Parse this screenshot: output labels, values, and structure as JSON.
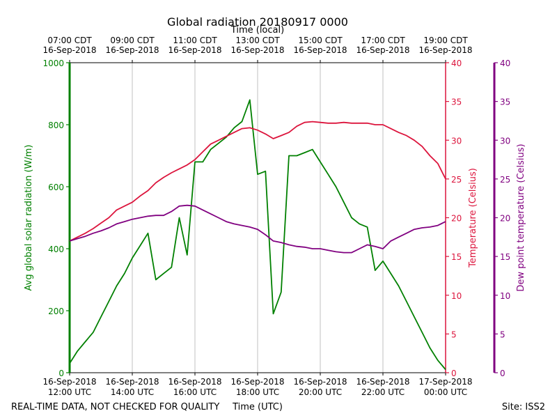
{
  "chart_data": {
    "type": "line",
    "title": "Global radiation 20180917 0000",
    "top_xlabel": "Time (local)",
    "xlabel": "Time (UTC)",
    "ylabel": "Avg global solar radiation (W/m)",
    "y2label": "Temperature (Celsius)",
    "y3label": "Dew point temperature (Celsius)",
    "footer_left": "REAL-TIME DATA, NOT CHECKED FOR QUALITY",
    "footer_right": "Site: ISS2",
    "grid": true,
    "x": [
      "2018-09-16T12:00Z",
      "2018-09-16T12:15Z",
      "2018-09-16T12:30Z",
      "2018-09-16T12:45Z",
      "2018-09-16T13:00Z",
      "2018-09-16T13:15Z",
      "2018-09-16T13:30Z",
      "2018-09-16T13:45Z",
      "2018-09-16T14:00Z",
      "2018-09-16T14:15Z",
      "2018-09-16T14:30Z",
      "2018-09-16T14:45Z",
      "2018-09-16T15:00Z",
      "2018-09-16T15:15Z",
      "2018-09-16T15:30Z",
      "2018-09-16T15:45Z",
      "2018-09-16T16:00Z",
      "2018-09-16T16:15Z",
      "2018-09-16T16:30Z",
      "2018-09-16T16:45Z",
      "2018-09-16T17:00Z",
      "2018-09-16T17:15Z",
      "2018-09-16T17:30Z",
      "2018-09-16T17:45Z",
      "2018-09-16T18:00Z",
      "2018-09-16T18:15Z",
      "2018-09-16T18:30Z",
      "2018-09-16T18:45Z",
      "2018-09-16T19:00Z",
      "2018-09-16T19:15Z",
      "2018-09-16T19:30Z",
      "2018-09-16T19:45Z",
      "2018-09-16T20:00Z",
      "2018-09-16T20:15Z",
      "2018-09-16T20:30Z",
      "2018-09-16T20:45Z",
      "2018-09-16T21:00Z",
      "2018-09-16T21:15Z",
      "2018-09-16T21:30Z",
      "2018-09-16T21:45Z",
      "2018-09-16T22:00Z",
      "2018-09-16T22:15Z",
      "2018-09-16T22:30Z",
      "2018-09-16T22:45Z",
      "2018-09-16T23:00Z",
      "2018-09-16T23:15Z",
      "2018-09-16T23:30Z",
      "2018-09-16T23:45Z",
      "2018-09-17T00:00Z"
    ],
    "xlim": [
      "2018-09-16T12:00Z",
      "2018-09-17T00:00Z"
    ],
    "xticks": [
      {
        "value": "2018-09-16T12:00Z",
        "label": [
          "16-Sep-2018",
          "12:00 UTC"
        ]
      },
      {
        "value": "2018-09-16T14:00Z",
        "label": [
          "16-Sep-2018",
          "14:00 UTC"
        ]
      },
      {
        "value": "2018-09-16T16:00Z",
        "label": [
          "16-Sep-2018",
          "16:00 UTC"
        ]
      },
      {
        "value": "2018-09-16T18:00Z",
        "label": [
          "16-Sep-2018",
          "18:00 UTC"
        ]
      },
      {
        "value": "2018-09-16T20:00Z",
        "label": [
          "16-Sep-2018",
          "20:00 UTC"
        ]
      },
      {
        "value": "2018-09-16T22:00Z",
        "label": [
          "16-Sep-2018",
          "22:00 UTC"
        ]
      },
      {
        "value": "2018-09-17T00:00Z",
        "label": [
          "17-Sep-2018",
          "00:00 UTC"
        ]
      }
    ],
    "top_xticks": [
      {
        "value": "2018-09-16T12:00Z",
        "label": [
          "07:00 CDT",
          "16-Sep-2018"
        ]
      },
      {
        "value": "2018-09-16T14:00Z",
        "label": [
          "09:00 CDT",
          "16-Sep-2018"
        ]
      },
      {
        "value": "2018-09-16T16:00Z",
        "label": [
          "11:00 CDT",
          "16-Sep-2018"
        ]
      },
      {
        "value": "2018-09-16T18:00Z",
        "label": [
          "13:00 CDT",
          "16-Sep-2018"
        ]
      },
      {
        "value": "2018-09-16T20:00Z",
        "label": [
          "15:00 CDT",
          "16-Sep-2018"
        ]
      },
      {
        "value": "2018-09-16T22:00Z",
        "label": [
          "17:00 CDT",
          "16-Sep-2018"
        ]
      },
      {
        "value": "2018-09-17T00:00Z",
        "label": [
          "19:00 CDT",
          "16-Sep-2018"
        ]
      }
    ],
    "ylim": [
      0,
      1000
    ],
    "yticks": [
      0,
      200,
      400,
      600,
      800,
      1000
    ],
    "ycolor": "#008000",
    "y2lim": [
      0,
      40
    ],
    "y2ticks": [
      0,
      5,
      10,
      15,
      20,
      25,
      30,
      35,
      40
    ],
    "y2color": "#dc143c",
    "y3lim": [
      0,
      40
    ],
    "y3ticks": [
      0,
      5,
      10,
      15,
      20,
      25,
      30,
      35,
      40
    ],
    "y3color": "#800080",
    "series": [
      {
        "name": "Avg global solar radiation",
        "color": "#008000",
        "axis": "y",
        "values": [
          30,
          70,
          100,
          130,
          180,
          230,
          280,
          320,
          370,
          410,
          450,
          300,
          320,
          340,
          500,
          380,
          680,
          680,
          720,
          740,
          760,
          790,
          810,
          880,
          640,
          650,
          190,
          260,
          700,
          700,
          710,
          720,
          680,
          640,
          600,
          550,
          500,
          480,
          470,
          330,
          360,
          320,
          280,
          230,
          180,
          130,
          80,
          40,
          10
        ]
      },
      {
        "name": "Temperature",
        "color": "#dc143c",
        "axis": "y2",
        "values": [
          17,
          17.5,
          18,
          18.6,
          19.3,
          20,
          21,
          21.5,
          22,
          22.8,
          23.5,
          24.5,
          25.2,
          25.8,
          26.3,
          26.8,
          27.5,
          28.5,
          29.5,
          30,
          30.5,
          31,
          31.5,
          31.6,
          31.3,
          30.8,
          30.2,
          30.6,
          31,
          31.8,
          32.3,
          32.4,
          32.3,
          32.2,
          32.2,
          32.3,
          32.2,
          32.2,
          32.2,
          32,
          32,
          31.5,
          31,
          30.6,
          30,
          29.2,
          28,
          27,
          25
        ]
      },
      {
        "name": "Dew point temperature",
        "color": "#800080",
        "axis": "y3",
        "values": [
          17,
          17.3,
          17.6,
          18,
          18.3,
          18.7,
          19.2,
          19.5,
          19.8,
          20,
          20.2,
          20.3,
          20.3,
          20.8,
          21.5,
          21.6,
          21.5,
          21,
          20.5,
          20,
          19.5,
          19.2,
          19,
          18.8,
          18.5,
          17.8,
          17,
          16.8,
          16.5,
          16.3,
          16.2,
          16,
          16,
          15.8,
          15.6,
          15.5,
          15.5,
          16,
          16.5,
          16.3,
          16,
          17,
          17.5,
          18,
          18.5,
          18.7,
          18.8,
          19,
          19.5
        ]
      }
    ]
  }
}
